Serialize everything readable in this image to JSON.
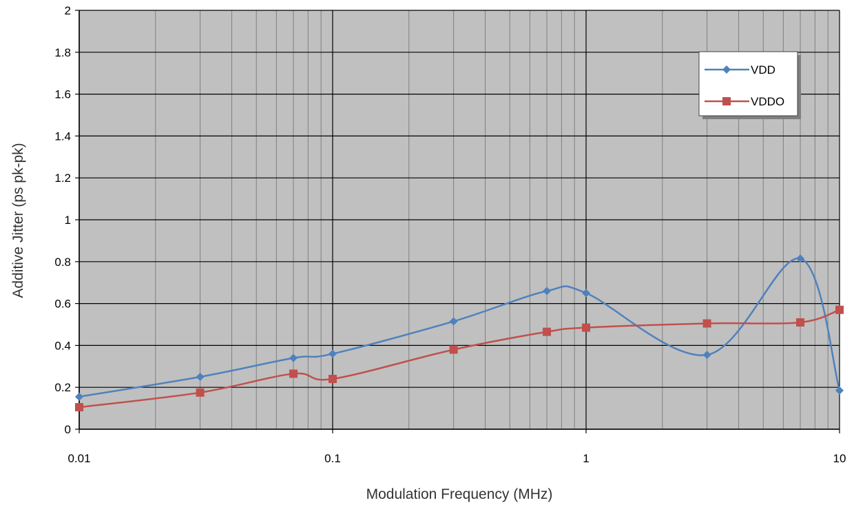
{
  "chart_data": {
    "type": "line",
    "title": "",
    "xlabel": "Modulation Frequency (MHz)",
    "ylabel": "Additive Jitter (ps pk-pk)",
    "x_scale": "log",
    "xlim": [
      0.01,
      10
    ],
    "ylim": [
      0,
      2
    ],
    "x_ticks": [
      {
        "value": 0.01,
        "label": "0.01"
      },
      {
        "value": 0.1,
        "label": "0.1"
      },
      {
        "value": 1,
        "label": "1"
      },
      {
        "value": 10,
        "label": "10"
      }
    ],
    "y_ticks": [
      {
        "value": 0,
        "label": "0"
      },
      {
        "value": 0.2,
        "label": "0.2"
      },
      {
        "value": 0.4,
        "label": "0.4"
      },
      {
        "value": 0.6,
        "label": "0.6"
      },
      {
        "value": 0.8,
        "label": "0.8"
      },
      {
        "value": 1,
        "label": "1"
      },
      {
        "value": 1.2,
        "label": "1.2"
      },
      {
        "value": 1.4,
        "label": "1.4"
      },
      {
        "value": 1.6,
        "label": "1.6"
      },
      {
        "value": 1.8,
        "label": "1.8"
      },
      {
        "value": 2,
        "label": "2"
      }
    ],
    "grid": true,
    "legend_position": "top-right",
    "plot_background": "#c0c0c0",
    "series": [
      {
        "name": "VDD",
        "color": "#4f81bd",
        "marker": "diamond",
        "x": [
          0.01,
          0.03,
          0.07,
          0.1,
          0.3,
          0.7,
          1,
          3,
          7,
          10
        ],
        "y": [
          0.155,
          0.25,
          0.34,
          0.36,
          0.515,
          0.66,
          0.65,
          0.355,
          0.815,
          0.185
        ]
      },
      {
        "name": "VDDO",
        "color": "#c0504d",
        "marker": "square",
        "x": [
          0.01,
          0.03,
          0.07,
          0.1,
          0.3,
          0.7,
          1,
          3,
          7,
          10
        ],
        "y": [
          0.105,
          0.175,
          0.265,
          0.24,
          0.38,
          0.465,
          0.485,
          0.505,
          0.51,
          0.57
        ]
      }
    ]
  }
}
